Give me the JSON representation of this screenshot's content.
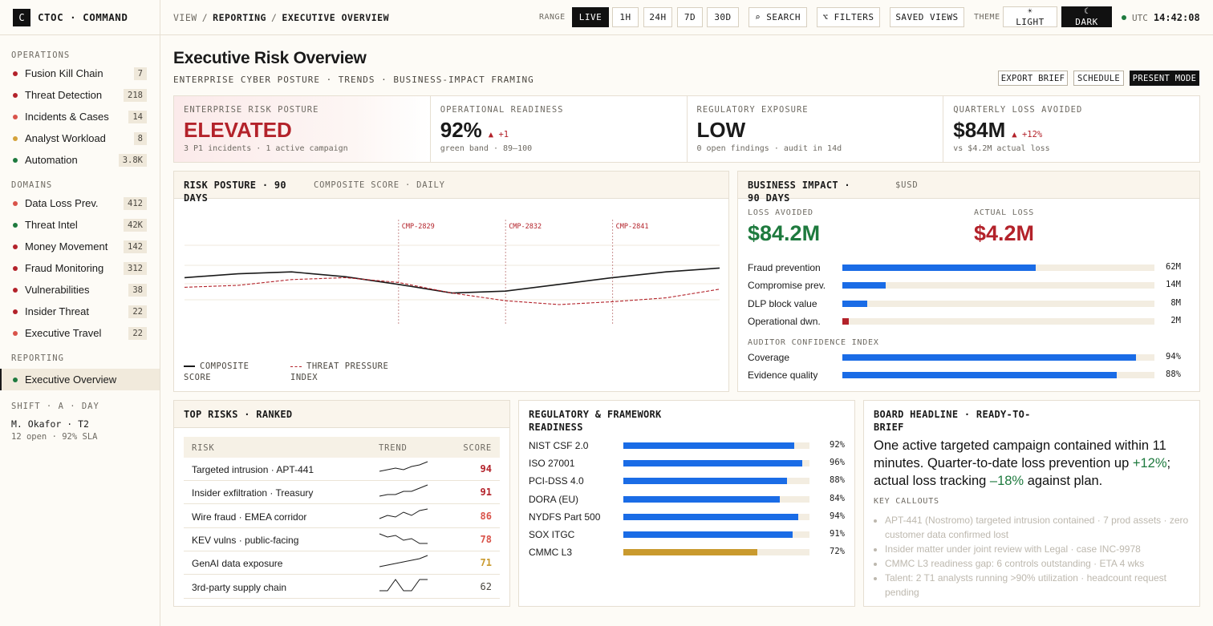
{
  "brand": {
    "logo": "C",
    "name": "CTOC · COMMAND"
  },
  "breadcrumb": {
    "root": "VIEW",
    "parent": "REPORTING",
    "current": "EXECUTIVE OVERVIEW"
  },
  "topbar": {
    "range_label": "RANGE",
    "ranges": [
      "LIVE",
      "1H",
      "24H",
      "7D",
      "30D"
    ],
    "selected_range": "LIVE",
    "search": "⌕ SEARCH",
    "filters": "⌥ FILTERS",
    "saved_views": "SAVED VIEWS",
    "theme_label": "THEME",
    "theme_light": "LIGHT",
    "theme_dark": "DARK",
    "selected_theme": "DARK",
    "utc_label": "UTC",
    "utc_time": "14:42:08"
  },
  "sidebar": {
    "sections": [
      {
        "title": "OPERATIONS",
        "items": [
          {
            "label": "Fusion Kill Chain",
            "count": "7",
            "color": "#b3222a"
          },
          {
            "label": "Threat Detection",
            "count": "218",
            "color": "#b3222a"
          },
          {
            "label": "Incidents & Cases",
            "count": "14",
            "color": "#d9534a"
          },
          {
            "label": "Analyst Workload",
            "count": "8",
            "color": "#d4a23a"
          },
          {
            "label": "Automation",
            "count": "3.8K",
            "color": "#1e7a3e"
          }
        ]
      },
      {
        "title": "DOMAINS",
        "items": [
          {
            "label": "Data Loss Prev.",
            "count": "412",
            "color": "#d9534a"
          },
          {
            "label": "Threat Intel",
            "count": "42K",
            "color": "#1e7a3e"
          },
          {
            "label": "Money Movement",
            "count": "142",
            "color": "#b3222a"
          },
          {
            "label": "Fraud Monitoring",
            "count": "312",
            "color": "#b3222a"
          },
          {
            "label": "Vulnerabilities",
            "count": "38",
            "color": "#b3222a"
          },
          {
            "label": "Insider Threat",
            "count": "22",
            "color": "#b3222a"
          },
          {
            "label": "Executive Travel",
            "count": "22",
            "color": "#d9534a"
          }
        ]
      },
      {
        "title": "REPORTING",
        "items": [
          {
            "label": "Executive Overview",
            "count": "",
            "color": "#1e7a3e",
            "active": true
          }
        ]
      }
    ],
    "shift": {
      "title": "SHIFT · A · DAY",
      "analyst": "M. Okafor · T2",
      "status": "12 open · 92% SLA"
    }
  },
  "page": {
    "title": "Executive Risk Overview",
    "subtitle": "ENTERPRISE CYBER POSTURE · TRENDS · BUSINESS-IMPACT FRAMING",
    "actions": {
      "export": "EXPORT BRIEF",
      "schedule": "SCHEDULE",
      "present": "PRESENT MODE"
    }
  },
  "kpis": [
    {
      "label": "ENTERPRISE RISK POSTURE",
      "value": "ELEVATED",
      "delta": "",
      "sub": "3 P1 incidents · 1 active campaign"
    },
    {
      "label": "OPERATIONAL READINESS",
      "value": "92%",
      "delta": "▲ +1",
      "sub": "green band · 89–100"
    },
    {
      "label": "REGULATORY EXPOSURE",
      "value": "LOW",
      "delta": "",
      "sub": "0 open findings · audit in 14d"
    },
    {
      "label": "QUARTERLY LOSS AVOIDED",
      "value": "$84M",
      "delta": "▲ +12%",
      "sub": "vs $4.2M actual loss"
    }
  ],
  "risk_posture": {
    "title": "RISK POSTURE · 90 DAYS",
    "meta": "COMPOSITE SCORE · DAILY",
    "legend": {
      "composite": "COMPOSITE SCORE",
      "threat": "THREAT PRESSURE INDEX"
    },
    "colors": {
      "composite": "#1a1a1a",
      "threat": "#b3222a"
    }
  },
  "chart_data": {
    "type": "line",
    "x": [
      0,
      1,
      2,
      3,
      4,
      5,
      6,
      7,
      8,
      9,
      10
    ],
    "series": [
      {
        "name": "COMPOSITE SCORE",
        "values": [
          58,
          62,
          64,
          59,
          51,
          42,
          44,
          51,
          58,
          64,
          68
        ]
      },
      {
        "name": "THREAT PRESSURE INDEX",
        "values": [
          48,
          50,
          56,
          58,
          53,
          42,
          34,
          30,
          33,
          37,
          46
        ]
      }
    ],
    "annotations": [
      {
        "x": 4,
        "label": "CMP-2829"
      },
      {
        "x": 6,
        "label": "CMP-2832"
      },
      {
        "x": 8,
        "label": "CMP-2841"
      }
    ],
    "ylim": [
      0,
      100
    ],
    "grid": true,
    "legend_position": "bottom-left"
  },
  "business_impact": {
    "title": "BUSINESS IMPACT · 90 DAYS",
    "meta": "$USD",
    "loss_avoided_label": "LOSS AVOIDED",
    "loss_avoided": "$84.2M",
    "actual_loss_label": "ACTUAL LOSS",
    "actual_loss": "$4.2M",
    "bars": [
      {
        "label": "Fraud prevention",
        "value": "62M",
        "fraction": 0.62,
        "color": "#1a6ce6"
      },
      {
        "label": "Compromise prev.",
        "value": "14M",
        "fraction": 0.14,
        "color": "#1a6ce6"
      },
      {
        "label": "DLP block value",
        "value": "8M",
        "fraction": 0.08,
        "color": "#1a6ce6"
      },
      {
        "label": "Operational dwn.",
        "value": "2M",
        "fraction": 0.02,
        "color": "#b3222a"
      }
    ],
    "auditor_label": "AUDITOR CONFIDENCE INDEX",
    "auditor": [
      {
        "label": "Coverage",
        "value": "94%",
        "fraction": 0.94,
        "color": "#1a6ce6"
      },
      {
        "label": "Evidence quality",
        "value": "88%",
        "fraction": 0.88,
        "color": "#1a6ce6"
      }
    ]
  },
  "top_risks": {
    "title": "TOP RISKS · RANKED",
    "columns": {
      "risk": "RISK",
      "trend": "TREND",
      "score": "SCORE"
    },
    "rows": [
      {
        "name": "Targeted intrusion · APT-441",
        "score": "94",
        "color": "#b3222a",
        "trend": [
          3,
          4,
          5,
          4,
          6,
          7,
          9
        ]
      },
      {
        "name": "Insider exfiltration · Treasury",
        "score": "91",
        "color": "#b3222a",
        "trend": [
          2,
          3,
          3,
          5,
          5,
          7,
          9
        ]
      },
      {
        "name": "Wire fraud · EMEA corridor",
        "score": "86",
        "color": "#d9534a",
        "trend": [
          3,
          5,
          4,
          7,
          5,
          8,
          9
        ]
      },
      {
        "name": "KEV vulns · public-facing",
        "score": "78",
        "color": "#d9534a",
        "trend": [
          8,
          6,
          7,
          4,
          5,
          2,
          2
        ]
      },
      {
        "name": "GenAI data exposure",
        "score": "71",
        "color": "#c99a2e",
        "trend": [
          2,
          3,
          4,
          5,
          6,
          7,
          9
        ]
      },
      {
        "name": "3rd-party supply chain",
        "score": "62",
        "color": "#4a463f",
        "trend": [
          2,
          2,
          9,
          2,
          2,
          9,
          9
        ]
      }
    ]
  },
  "regulatory": {
    "title": "REGULATORY & FRAMEWORK READINESS",
    "rows": [
      {
        "label": "NIST CSF 2.0",
        "value": "92%",
        "fraction": 0.92,
        "color": "#1a6ce6"
      },
      {
        "label": "ISO 27001",
        "value": "96%",
        "fraction": 0.96,
        "color": "#1a6ce6"
      },
      {
        "label": "PCI-DSS 4.0",
        "value": "88%",
        "fraction": 0.88,
        "color": "#1a6ce6"
      },
      {
        "label": "DORA (EU)",
        "value": "84%",
        "fraction": 0.84,
        "color": "#1a6ce6"
      },
      {
        "label": "NYDFS Part 500",
        "value": "94%",
        "fraction": 0.94,
        "color": "#1a6ce6"
      },
      {
        "label": "SOX ITGC",
        "value": "91%",
        "fraction": 0.91,
        "color": "#1a6ce6"
      },
      {
        "label": "CMMC L3",
        "value": "72%",
        "fraction": 0.72,
        "color": "#c99a2e"
      }
    ]
  },
  "board": {
    "title": "BOARD HEADLINE · READY-TO-BRIEF",
    "headline_a": "One active targeted campaign contained within 11 minutes. Quarter-to-date loss prevention up ",
    "headline_up": "+12%",
    "headline_b": "; actual loss tracking ",
    "headline_down": "–18%",
    "headline_c": " against plan.",
    "callouts_label": "KEY CALLOUTS",
    "callouts": [
      "APT-441 (Nostromo) targeted intrusion contained · 7 prod assets · zero customer data confirmed lost",
      "Insider matter under joint review with Legal · case INC-9978",
      "CMMC L3 readiness gap: 6 controls outstanding · ETA 4 wks",
      "Talent: 2 T1 analysts running >90% utilization · headcount request pending"
    ]
  }
}
